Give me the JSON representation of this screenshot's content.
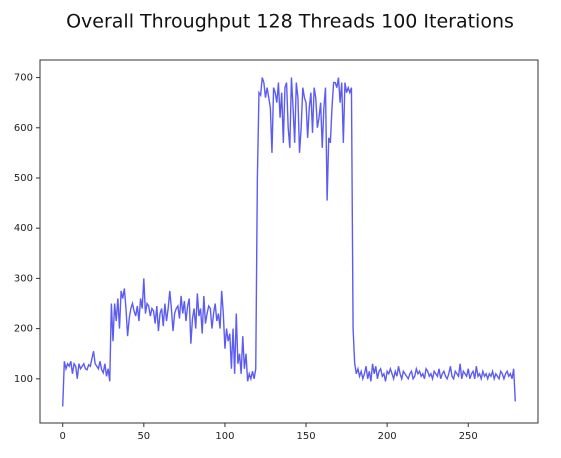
{
  "chart_data": {
    "type": "line",
    "title": "Overall Throughput 128 Threads 100 Iterations",
    "color": "#5c5cf2",
    "xlim": [
      -14,
      293
    ],
    "xticks": [
      0,
      50,
      100,
      150,
      200,
      250
    ],
    "ylim": [
      12,
      735
    ],
    "yticks": [
      100,
      200,
      300,
      400,
      500,
      600,
      700
    ],
    "values": [
      45,
      135,
      120,
      130,
      125,
      135,
      110,
      130,
      125,
      100,
      130,
      120,
      125,
      130,
      120,
      118,
      128,
      125,
      140,
      155,
      130,
      125,
      120,
      135,
      118,
      112,
      130,
      105,
      120,
      95,
      250,
      175,
      250,
      215,
      260,
      200,
      275,
      260,
      280,
      240,
      185,
      220,
      240,
      250,
      235,
      225,
      245,
      215,
      260,
      240,
      300,
      230,
      250,
      245,
      225,
      240,
      235,
      210,
      245,
      195,
      230,
      240,
      205,
      250,
      215,
      240,
      275,
      240,
      195,
      230,
      240,
      245,
      220,
      265,
      230,
      255,
      215,
      245,
      260,
      170,
      220,
      240,
      200,
      270,
      225,
      240,
      190,
      265,
      210,
      230,
      245,
      240,
      200,
      230,
      250,
      215,
      230,
      200,
      275,
      230,
      160,
      200,
      175,
      190,
      120,
      200,
      110,
      230,
      130,
      150,
      110,
      185,
      120,
      150,
      95,
      110,
      100,
      115,
      100,
      120,
      500,
      670,
      665,
      700,
      690,
      660,
      680,
      660,
      640,
      550,
      680,
      670,
      650,
      690,
      620,
      670,
      570,
      680,
      690,
      600,
      560,
      700,
      640,
      570,
      690,
      660,
      550,
      600,
      680,
      660,
      650,
      580,
      640,
      670,
      590,
      680,
      660,
      600,
      620,
      650,
      560,
      640,
      680,
      455,
      580,
      570,
      640,
      690,
      690,
      680,
      700,
      650,
      690,
      570,
      690,
      670,
      680,
      670,
      680,
      200,
      130,
      110,
      120,
      105,
      115,
      100,
      110,
      125,
      100,
      115,
      95,
      130,
      110,
      125,
      100,
      115,
      120,
      105,
      110,
      95,
      115,
      110,
      120,
      110,
      100,
      115,
      105,
      125,
      110,
      100,
      115,
      110,
      105,
      100,
      110,
      115,
      100,
      105,
      120,
      110,
      115,
      105,
      110,
      100,
      120,
      115,
      105,
      110,
      100,
      115,
      110,
      105,
      120,
      100,
      110,
      115,
      105,
      100,
      110,
      125,
      105,
      100,
      115,
      110,
      105,
      130,
      100,
      115,
      110,
      105,
      120,
      100,
      110,
      115,
      100,
      125,
      105,
      110,
      100,
      115,
      105,
      110,
      100,
      110,
      105,
      115,
      100,
      110,
      105,
      100,
      115,
      110,
      100,
      110,
      115,
      105,
      110,
      100,
      120,
      55
    ]
  }
}
